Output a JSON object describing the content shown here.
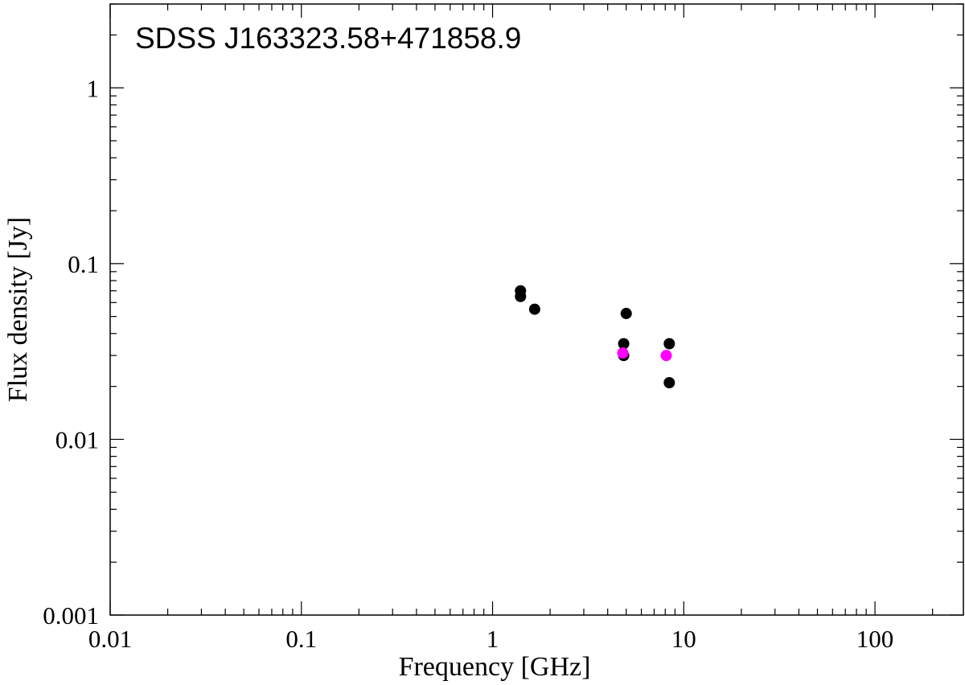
{
  "chart_data": {
    "type": "scatter",
    "title": "SDSS J163323.58+471858.9",
    "xlabel": "Frequency [GHz]",
    "ylabel": "Flux density [Jy]",
    "xscale": "log",
    "yscale": "log",
    "xlim": [
      0.01,
      290
    ],
    "ylim": [
      0.001,
      3
    ],
    "xticks": [
      0.01,
      0.1,
      1,
      10,
      100
    ],
    "xtick_labels": [
      "0.01",
      "0.1",
      "1",
      "10",
      "100"
    ],
    "yticks": [
      0.001,
      0.01,
      0.1,
      1
    ],
    "ytick_labels": [
      "0.001",
      "0.01",
      "0.1",
      "1"
    ],
    "grid": false,
    "series": [
      {
        "color": "#000000",
        "points": [
          {
            "x": 1.4,
            "y": 0.07
          },
          {
            "x": 1.4,
            "y": 0.065
          },
          {
            "x": 1.66,
            "y": 0.055
          },
          {
            "x": 4.85,
            "y": 0.035
          },
          {
            "x": 4.85,
            "y": 0.03
          },
          {
            "x": 5.0,
            "y": 0.052
          },
          {
            "x": 8.4,
            "y": 0.035
          },
          {
            "x": 8.4,
            "y": 0.021
          }
        ]
      },
      {
        "color": "#ff00ff",
        "points": [
          {
            "x": 4.8,
            "y": 0.031
          },
          {
            "x": 8.1,
            "y": 0.03
          }
        ]
      }
    ]
  }
}
